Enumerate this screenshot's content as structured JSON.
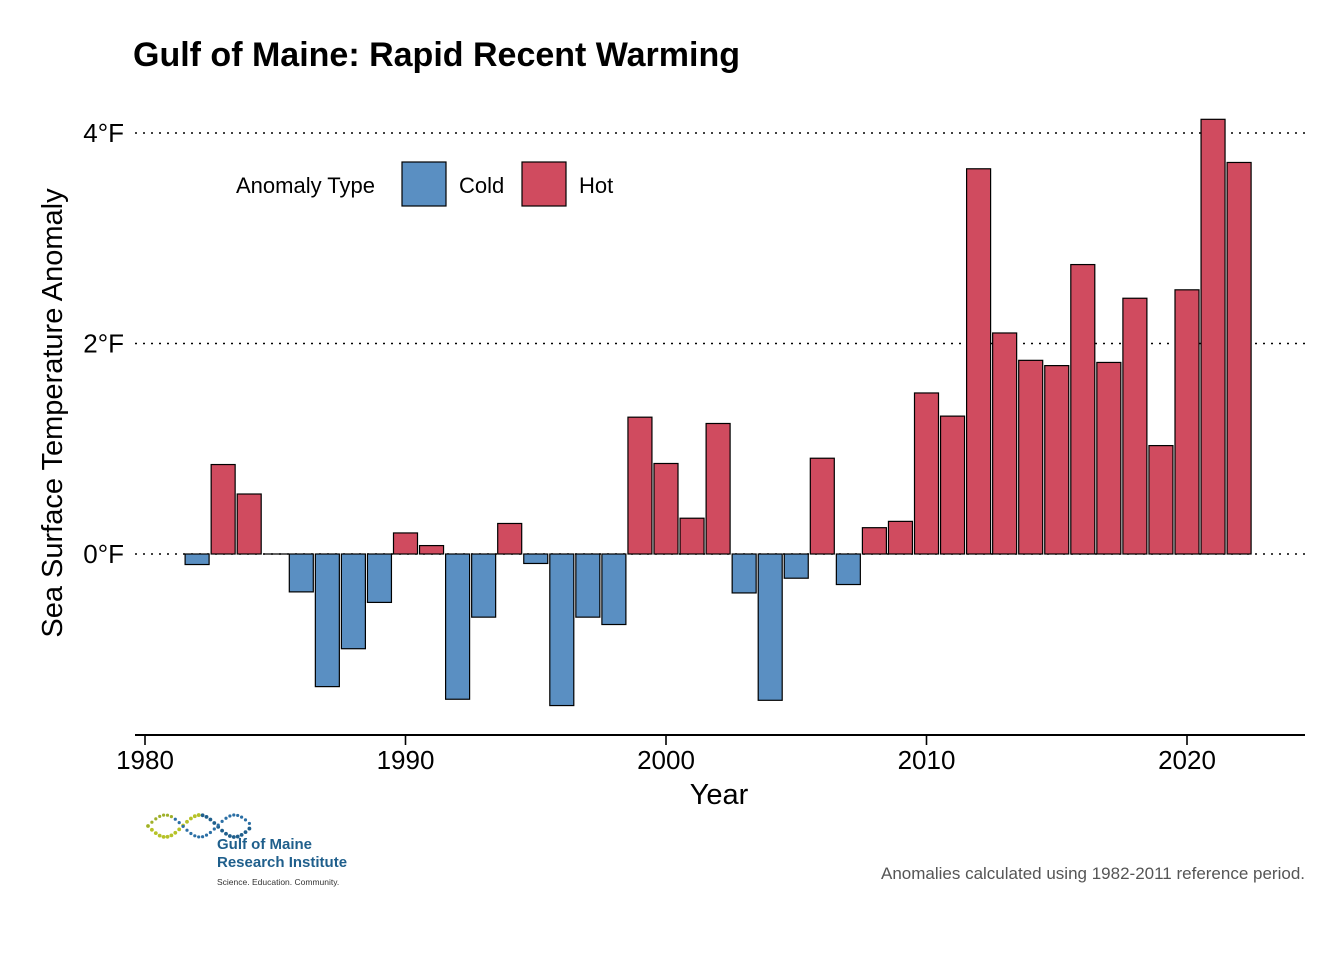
{
  "chart_data": {
    "type": "bar",
    "title": "Gulf of Maine: Rapid Recent Warming",
    "xlabel": "Year",
    "ylabel": "Sea Surface Temperature Anomaly",
    "x_ticks": [
      "1980",
      "1990",
      "2000",
      "2010",
      "2020"
    ],
    "y_ticks": [
      "4°F",
      "2°F",
      "0°F"
    ],
    "ylim": [
      -1.7,
      4.2
    ],
    "xlim": [
      1979.6,
      2024.5
    ],
    "grid": "horizontal dotted",
    "legend": {
      "title": "Anomaly Type",
      "position": "top-left",
      "items": [
        {
          "label": "Cold",
          "color": "#5a8fc2"
        },
        {
          "label": "Hot",
          "color": "#d04b5f"
        }
      ]
    },
    "years": [
      1982,
      1983,
      1984,
      1985,
      1986,
      1987,
      1988,
      1989,
      1990,
      1991,
      1992,
      1993,
      1994,
      1995,
      1996,
      1997,
      1998,
      1999,
      2000,
      2001,
      2002,
      2003,
      2004,
      2005,
      2006,
      2007,
      2008,
      2009,
      2010,
      2011,
      2012,
      2013,
      2014,
      2015,
      2016,
      2017,
      2018,
      2019,
      2020,
      2021,
      2022
    ],
    "values": [
      -0.1,
      0.85,
      0.57,
      0.0,
      -0.36,
      -1.26,
      -0.9,
      -0.46,
      0.2,
      0.08,
      -1.38,
      -0.6,
      0.29,
      -0.09,
      -1.44,
      -0.6,
      -0.67,
      1.3,
      0.86,
      0.34,
      1.24,
      -0.37,
      -1.39,
      -0.23,
      0.91,
      -0.29,
      0.25,
      0.31,
      1.53,
      1.31,
      3.66,
      2.1,
      1.84,
      1.79,
      2.75,
      1.82,
      2.43,
      1.03,
      2.51,
      4.13,
      3.72
    ],
    "colors": {
      "cold": "#5a8fc2",
      "hot": "#d04b5f"
    }
  },
  "caption": "Anomalies calculated using 1982-2011 reference period.",
  "logo": {
    "name_line1": "Gulf of Maine",
    "name_line2": "Research Institute",
    "tagline": "Science. Education. Community."
  }
}
